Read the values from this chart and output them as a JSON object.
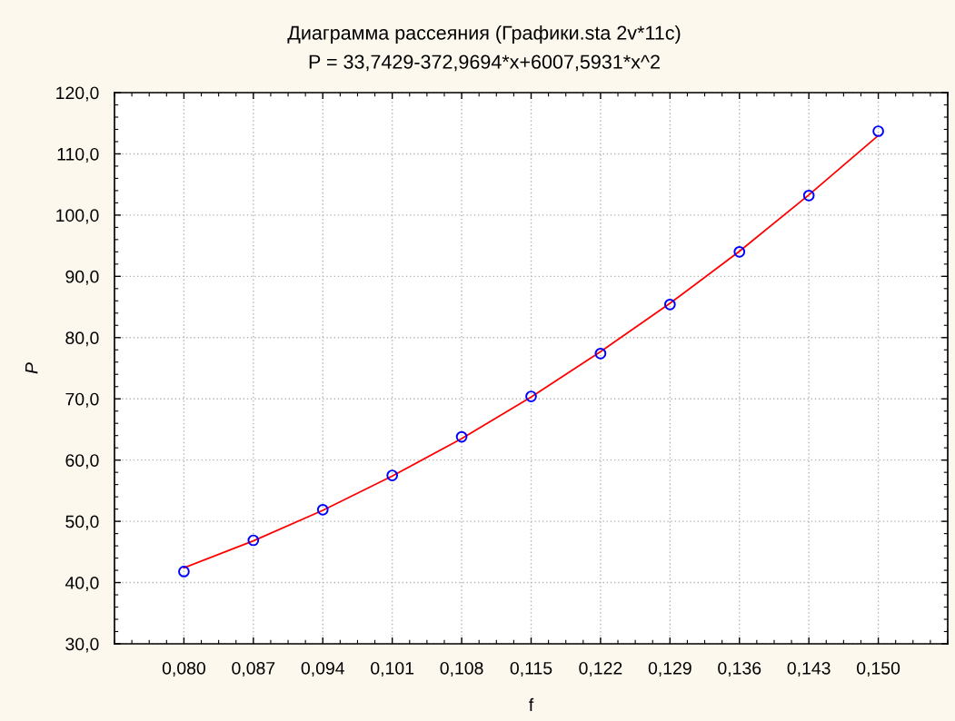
{
  "chart_data": {
    "type": "scatter",
    "title": "Диаграмма рассеяния (Графики.sta 2v*11c)",
    "subtitle": "P = 33,7429-372,9694*x+6007,5931*x^2",
    "xlabel": "f",
    "ylabel": "P",
    "x": [
      0.08,
      0.087,
      0.094,
      0.101,
      0.108,
      0.115,
      0.122,
      0.129,
      0.136,
      0.143,
      0.15
    ],
    "series": [
      {
        "color": "#0000ff",
        "marker": "circle",
        "values": [
          41.8,
          46.9,
          51.9,
          57.5,
          63.8,
          70.4,
          77.4,
          85.4,
          94.0,
          103.2,
          113.7
        ]
      },
      {
        "type": "line",
        "color": "#ff0000",
        "marker": "none",
        "line_style": "solid",
        "x": [
          0.08,
          0.087,
          0.094,
          0.101,
          0.108,
          0.115,
          0.122,
          0.129,
          0.136,
          0.143,
          0.15
        ],
        "values": [
          42.4,
          46.8,
          51.8,
          57.4,
          63.5,
          70.3,
          77.7,
          85.6,
          94.1,
          103.3,
          113.0
        ]
      }
    ],
    "xlim": [
      0.073,
      0.157
    ],
    "ylim": [
      30,
      120
    ],
    "xticks": [
      {
        "value": 0.08,
        "label": "0,080"
      },
      {
        "value": 0.087,
        "label": "0,087"
      },
      {
        "value": 0.094,
        "label": "0,094"
      },
      {
        "value": 0.101,
        "label": "0,101"
      },
      {
        "value": 0.108,
        "label": "0,108"
      },
      {
        "value": 0.115,
        "label": "0,115"
      },
      {
        "value": 0.122,
        "label": "0,122"
      },
      {
        "value": 0.129,
        "label": "0,129"
      },
      {
        "value": 0.136,
        "label": "0,136"
      },
      {
        "value": 0.143,
        "label": "0,143"
      },
      {
        "value": 0.15,
        "label": "0,150"
      }
    ],
    "yticks": [
      {
        "value": 30,
        "label": "30,0"
      },
      {
        "value": 40,
        "label": "40,0"
      },
      {
        "value": 50,
        "label": "50,0"
      },
      {
        "value": 60,
        "label": "60,0"
      },
      {
        "value": 70,
        "label": "70,0"
      },
      {
        "value": 80,
        "label": "80,0"
      },
      {
        "value": 90,
        "label": "90,0"
      },
      {
        "value": 100,
        "label": "100,0"
      },
      {
        "value": 110,
        "label": "110,0"
      },
      {
        "value": 120,
        "label": "120,0"
      }
    ],
    "grid": true
  }
}
